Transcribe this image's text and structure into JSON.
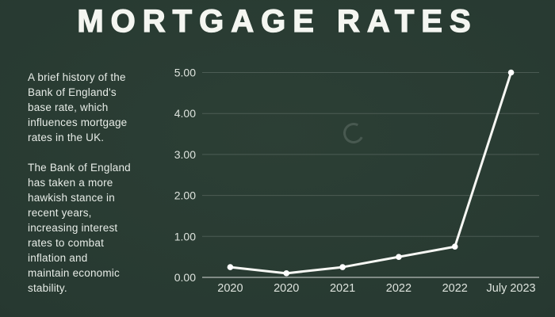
{
  "title": "MORTGAGE RATES",
  "sidebar": {
    "paragraph1": "A brief history of the\nBank of England's\nbase rate, which\ninfluences mortgage\nrates in the UK.",
    "paragraph2": "The Bank of England\nhas taken a more\nhawkish stance in\nrecent years,\nincreasing interest\nrates to combat\ninflation and\nmaintain economic\nstability."
  },
  "chart_data": {
    "type": "line",
    "categories": [
      "2020",
      "2020",
      "2021",
      "2022",
      "2022",
      "July 2023"
    ],
    "values": [
      0.25,
      0.1,
      0.25,
      0.5,
      0.75,
      5.0
    ],
    "title": "",
    "xlabel": "",
    "ylabel": "",
    "ylim": [
      0,
      5
    ],
    "yticks": [
      0,
      1,
      2,
      3,
      4,
      5
    ],
    "ytick_labels": [
      "0.00",
      "1.00",
      "2.00",
      "3.00",
      "4.00",
      "5.00"
    ],
    "grid": true,
    "legend": false,
    "marker": "circle"
  },
  "icons": {
    "loading_spinner": "open-ring"
  },
  "colors": {
    "background": "#273931",
    "title_text": "#f4f6f1",
    "body_text": "#e7ece7",
    "axis_text": "#dde3dd",
    "gridline": "rgba(255,255,255,0.16)",
    "baseline": "rgba(255,255,255,0.55)",
    "line": "#f7f8f4",
    "marker_fill": "#ffffff",
    "spinner": "rgba(255,255,255,0.14)"
  }
}
